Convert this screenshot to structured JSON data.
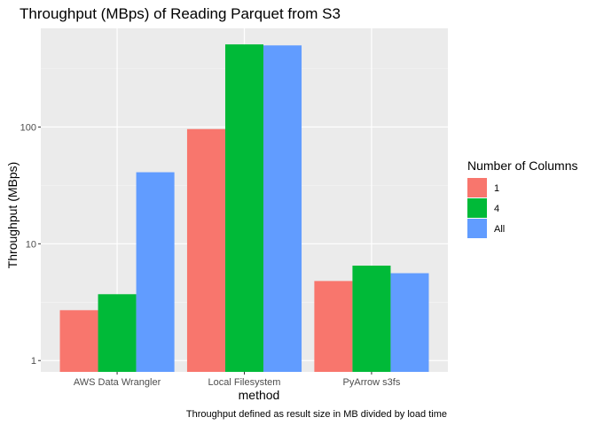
{
  "chart_data": {
    "type": "bar",
    "title": "Throughput (MBps) of Reading Parquet from S3",
    "xlabel": "method",
    "ylabel": "Throughput (MBps)",
    "caption": "Throughput defined as result size in MB divided by load time",
    "y_scale": "log10",
    "ylim": [
      0.8,
      700
    ],
    "yticks": [
      1,
      10,
      100
    ],
    "ytick_labels": [
      "1",
      "10",
      "100"
    ],
    "grid": true,
    "legend": {
      "title": "Number of Columns",
      "position": "right"
    },
    "categories": [
      "AWS Data Wrangler",
      "Local Filesystem",
      "PyArrow s3fs"
    ],
    "series": [
      {
        "name": "1",
        "color": "#F8766D",
        "values": [
          2.7,
          96,
          4.8
        ]
      },
      {
        "name": "4",
        "color": "#00BA38",
        "values": [
          3.7,
          510,
          6.5
        ]
      },
      {
        "name": "All",
        "color": "#619CFF",
        "values": [
          41,
          500,
          5.6
        ]
      }
    ]
  }
}
